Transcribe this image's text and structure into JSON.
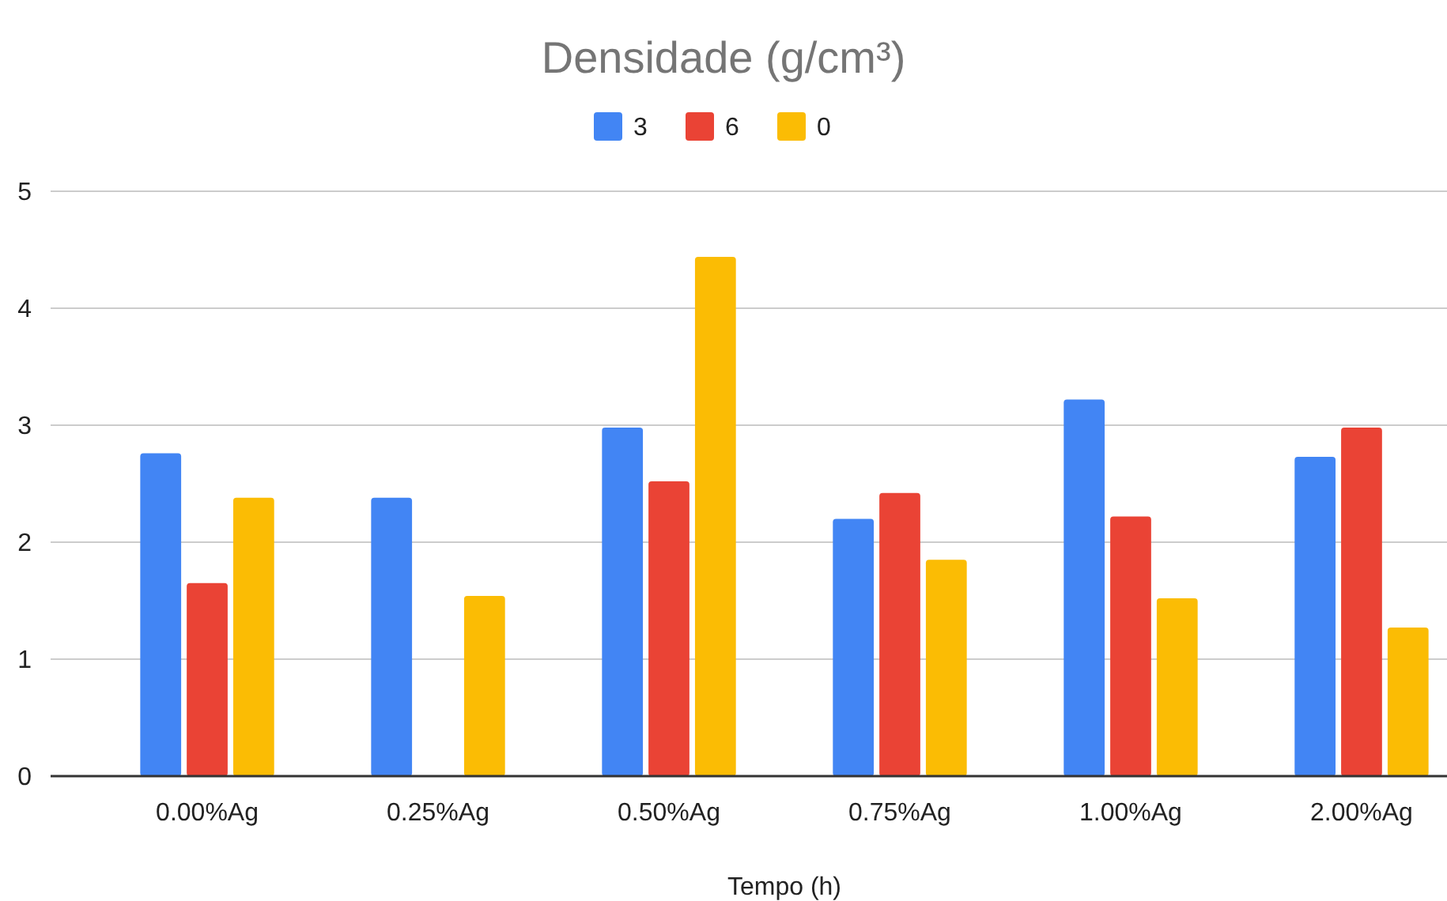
{
  "chart_data": {
    "type": "bar",
    "title": "Densidade (g/cm³)",
    "xlabel": "Tempo (h)",
    "categories": [
      "0.00%Ag",
      "0.25%Ag",
      "0.50%Ag",
      "0.75%Ag",
      "1.00%Ag",
      "2.00%Ag"
    ],
    "series": [
      {
        "name": "3",
        "color": "#4285f4",
        "values": [
          2.76,
          2.38,
          2.98,
          2.2,
          3.22,
          2.73
        ]
      },
      {
        "name": "6",
        "color": "#ea4335",
        "values": [
          1.65,
          null,
          2.52,
          2.42,
          2.22,
          2.98
        ]
      },
      {
        "name": "0",
        "color": "#fbbc04",
        "values": [
          2.38,
          1.54,
          4.44,
          1.85,
          1.52,
          1.27
        ]
      }
    ],
    "ylim": [
      0,
      5
    ],
    "yticks": [
      0,
      1,
      2,
      3,
      4,
      5
    ],
    "grid": "y",
    "legend": "top"
  }
}
